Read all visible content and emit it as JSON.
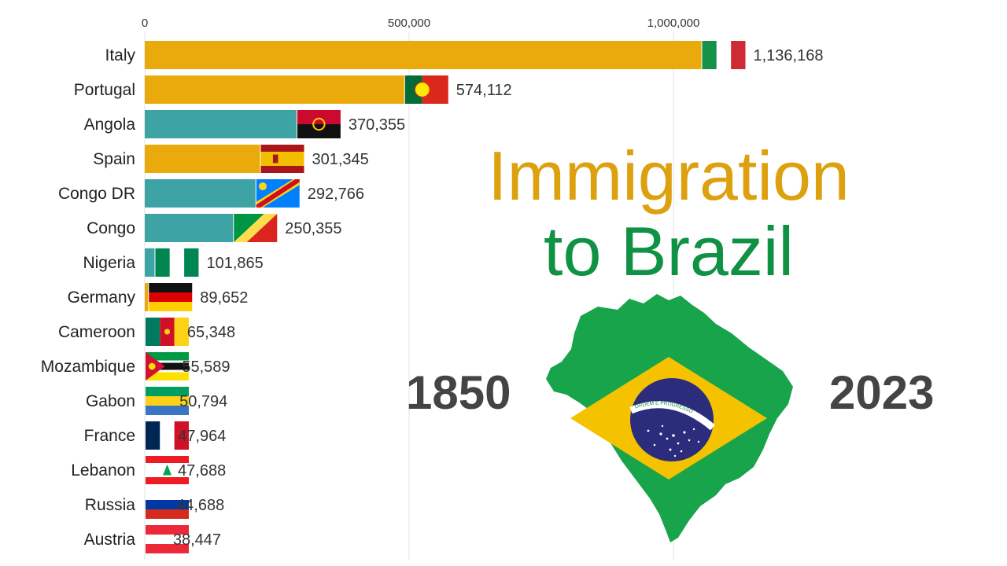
{
  "title": {
    "line1": "Immigration",
    "line2": "to Brazil"
  },
  "years": {
    "start": "1850",
    "end": "2023"
  },
  "map": {
    "motto": "ORDEM E PROGRESSO"
  },
  "colors": {
    "europe": "#EAAA0C",
    "africa": "#3EA3A4",
    "asia": "#8E3D73",
    "title_line1": "#DDA00E",
    "title_line2": "#109245",
    "brazil_green": "#17A44A",
    "brazil_yellow": "#F5C200",
    "brazil_blue": "#2B2D7C"
  },
  "chart_data": {
    "type": "bar",
    "orientation": "horizontal",
    "xlim": [
      0,
      1250000
    ],
    "xticks": [
      0,
      500000,
      1000000
    ],
    "xtick_labels": [
      "0",
      "500,000",
      "1,000,000"
    ],
    "grid": true,
    "categories": [
      "Italy",
      "Portugal",
      "Angola",
      "Spain",
      "Congo DR",
      "Congo",
      "Nigeria",
      "Germany",
      "Cameroon",
      "Mozambique",
      "Gabon",
      "France",
      "Lebanon",
      "Russia",
      "Austria"
    ],
    "values": [
      1136168,
      574112,
      370355,
      301345,
      292766,
      250355,
      101865,
      89652,
      65348,
      55589,
      50794,
      47964,
      47688,
      44688,
      38447
    ],
    "value_labels": [
      "1,136,168",
      "574,112",
      "370,355",
      "301,345",
      "292,766",
      "250,355",
      "101,865",
      "89,652",
      "65,348",
      "55,589",
      "50,794",
      "47,964",
      "47,688",
      "44,688",
      "38,447"
    ],
    "bar_groups": [
      "europe",
      "europe",
      "africa",
      "europe",
      "africa",
      "africa",
      "africa",
      "europe",
      "africa",
      "africa",
      "africa",
      "europe",
      "asia",
      "europe",
      "europe"
    ],
    "flags": [
      "italy",
      "portugal",
      "angola",
      "spain",
      "congo-dr",
      "congo",
      "nigeria",
      "germany",
      "cameroon",
      "mozambique",
      "gabon",
      "france",
      "lebanon",
      "russia",
      "austria"
    ]
  }
}
